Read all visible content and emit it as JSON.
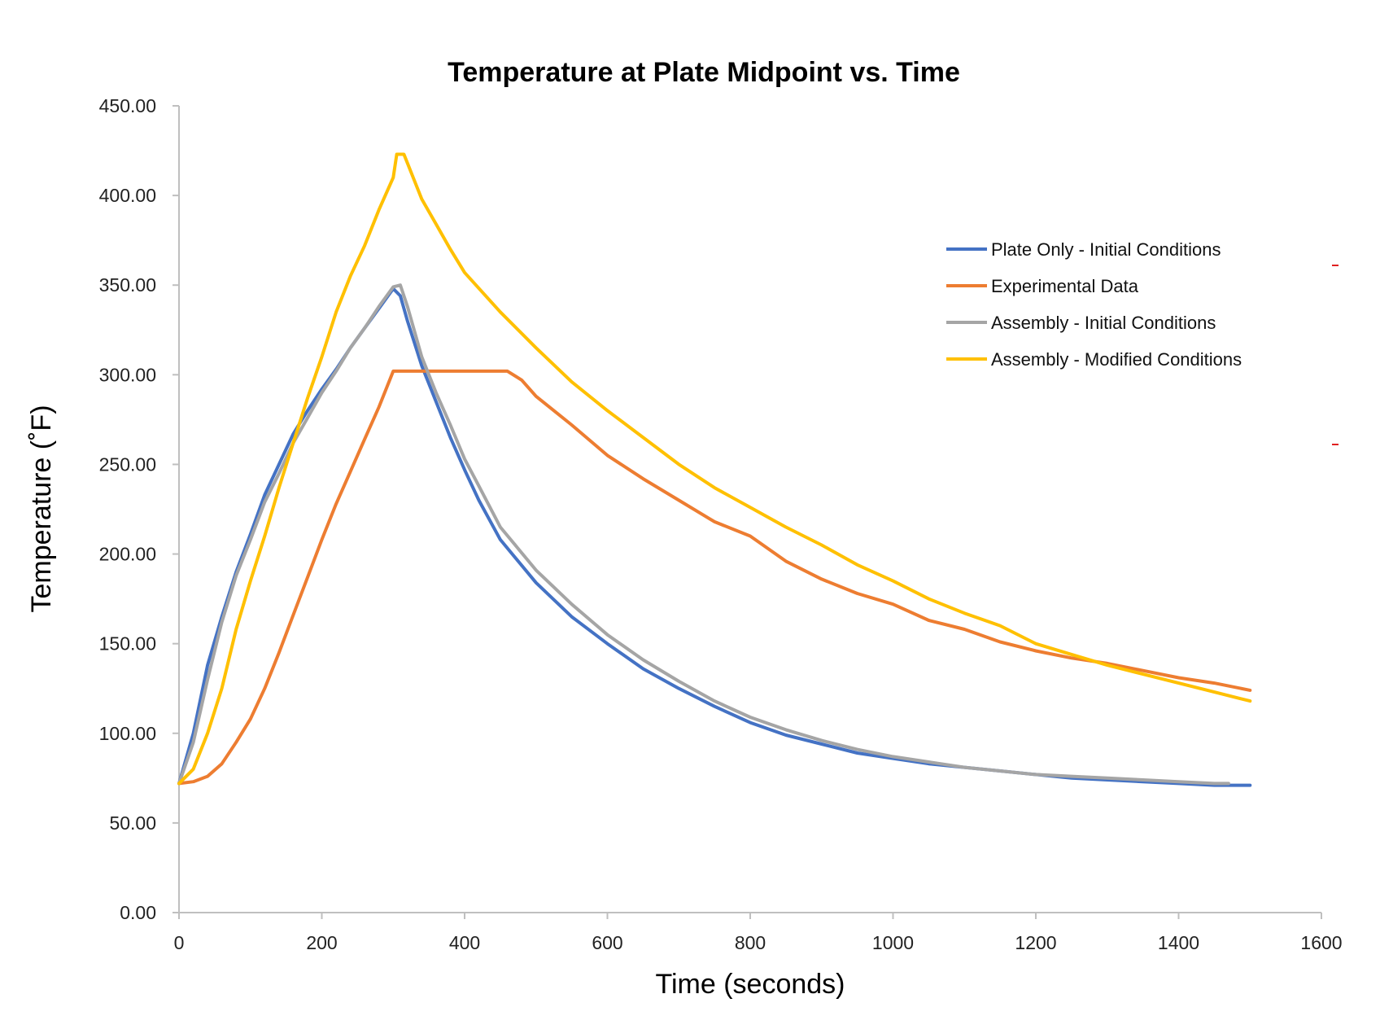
{
  "chart_data": {
    "type": "line",
    "title": "Temperature at Plate Midpoint vs. Time",
    "xlabel": "Time (seconds)",
    "ylabel": "Temperature (˚F)",
    "xlim": [
      0,
      1600
    ],
    "ylim": [
      0,
      450
    ],
    "x_ticks": [
      0,
      200,
      400,
      600,
      800,
      1000,
      1200,
      1400,
      1600
    ],
    "x_tick_labels": [
      "0",
      "200",
      "400",
      "600",
      "800",
      "1000",
      "1200",
      "1400",
      "1600"
    ],
    "y_ticks": [
      0,
      50,
      100,
      150,
      200,
      250,
      300,
      350,
      400,
      450
    ],
    "y_tick_labels": [
      "0.00",
      "50.00",
      "100.00",
      "150.00",
      "200.00",
      "250.00",
      "300.00",
      "350.00",
      "400.00",
      "450.00"
    ],
    "grid": false,
    "legend_position": "top-right",
    "series": [
      {
        "name": "Plate Only - Initial Conditions",
        "color": "#4472C4",
        "x": [
          0,
          20,
          40,
          60,
          80,
          100,
          120,
          140,
          160,
          180,
          200,
          220,
          240,
          260,
          280,
          300,
          310,
          320,
          340,
          360,
          380,
          400,
          420,
          450,
          500,
          550,
          600,
          650,
          700,
          750,
          800,
          850,
          900,
          950,
          1000,
          1050,
          1100,
          1150,
          1200,
          1250,
          1300,
          1350,
          1400,
          1450,
          1500
        ],
        "y": [
          72,
          100,
          138,
          165,
          190,
          211,
          233,
          250,
          267,
          280,
          292,
          303,
          315,
          326,
          337,
          348,
          344,
          330,
          305,
          285,
          265,
          247,
          230,
          208,
          184,
          165,
          150,
          136,
          125,
          115,
          106,
          99,
          94,
          89,
          86,
          83,
          81,
          79,
          77,
          75,
          74,
          73,
          72,
          71,
          71
        ]
      },
      {
        "name": "Experimental Data",
        "color": "#ED7D31",
        "x": [
          0,
          20,
          40,
          60,
          80,
          100,
          120,
          140,
          160,
          180,
          200,
          220,
          240,
          260,
          280,
          300,
          340,
          380,
          420,
          460,
          480,
          500,
          550,
          600,
          650,
          700,
          750,
          800,
          850,
          900,
          950,
          1000,
          1050,
          1100,
          1150,
          1200,
          1250,
          1300,
          1350,
          1400,
          1450,
          1500
        ],
        "y": [
          72,
          73,
          76,
          83,
          95,
          108,
          125,
          145,
          166,
          187,
          208,
          228,
          246,
          264,
          282,
          302,
          302,
          302,
          302,
          302,
          297,
          288,
          272,
          255,
          242,
          230,
          218,
          210,
          196,
          186,
          178,
          172,
          163,
          158,
          151,
          146,
          142,
          139,
          135,
          131,
          128,
          124
        ]
      },
      {
        "name": "Assembly - Initial Conditions",
        "color": "#A5A5A5",
        "x": [
          0,
          20,
          40,
          60,
          80,
          100,
          120,
          140,
          160,
          180,
          200,
          220,
          240,
          260,
          280,
          300,
          310,
          320,
          340,
          360,
          380,
          400,
          420,
          450,
          500,
          550,
          600,
          650,
          700,
          750,
          800,
          850,
          900,
          950,
          1000,
          1050,
          1100,
          1150,
          1200,
          1250,
          1300,
          1350,
          1400,
          1450,
          1470
        ],
        "y": [
          72,
          95,
          130,
          162,
          188,
          208,
          229,
          245,
          262,
          276,
          290,
          302,
          315,
          326,
          338,
          349,
          350,
          338,
          310,
          290,
          272,
          253,
          238,
          215,
          191,
          172,
          155,
          141,
          129,
          118,
          109,
          102,
          96,
          91,
          87,
          84,
          81,
          79,
          77,
          76,
          75,
          74,
          73,
          72,
          72
        ]
      },
      {
        "name": "Assembly - Modified Conditions",
        "color": "#FFC000",
        "x": [
          0,
          20,
          40,
          60,
          80,
          100,
          120,
          140,
          160,
          180,
          200,
          220,
          240,
          260,
          280,
          300,
          305,
          315,
          320,
          340,
          360,
          380,
          400,
          450,
          500,
          550,
          600,
          650,
          700,
          750,
          800,
          850,
          900,
          950,
          1000,
          1050,
          1100,
          1150,
          1200,
          1250,
          1300,
          1350,
          1400,
          1450,
          1500
        ],
        "y": [
          72,
          80,
          100,
          125,
          158,
          185,
          210,
          237,
          262,
          287,
          310,
          335,
          355,
          372,
          392,
          410,
          423,
          423,
          418,
          398,
          384,
          370,
          357,
          335,
          315,
          296,
          280,
          265,
          250,
          237,
          226,
          215,
          205,
          194,
          185,
          175,
          167,
          160,
          150,
          144,
          138,
          133,
          128,
          123,
          118
        ]
      }
    ]
  }
}
